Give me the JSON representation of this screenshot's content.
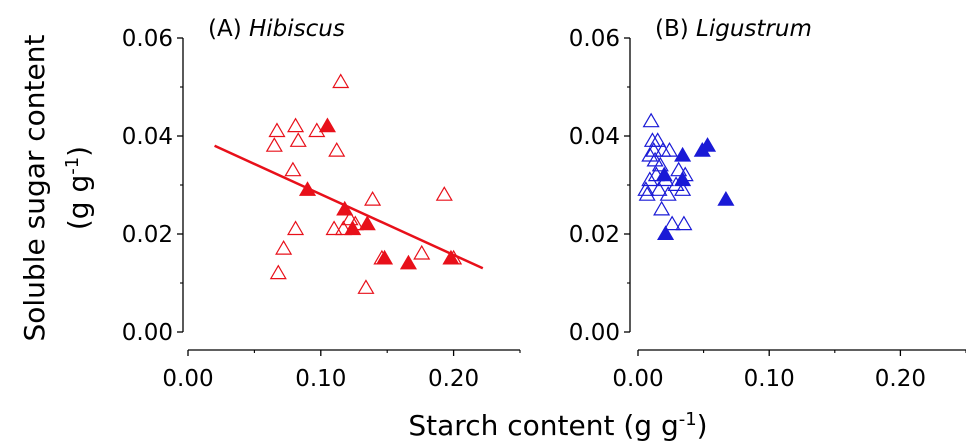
{
  "figure": {
    "ylabel_line1": "Soluble sugar content",
    "ylabel_line2_main": "(g g",
    "ylabel_line2_sup": "-1",
    "ylabel_line2_end": ")",
    "xlabel_main": "Starch content (g g",
    "xlabel_sup": "-1",
    "xlabel_end": ")"
  },
  "colors": {
    "hibiscus": "#e8101a",
    "ligustrum": "#1a1ad6"
  },
  "chart_data": [
    {
      "type": "scatter",
      "panel_label": "(A) ",
      "panel_species": "Hibiscus",
      "xlim": [
        0,
        0.25
      ],
      "ylim": [
        0,
        0.06
      ],
      "x_ticks": [
        "0.00",
        "0.10",
        "0.20"
      ],
      "x_tick_values": [
        0,
        0.1,
        0.2
      ],
      "y_ticks": [
        "0.00",
        "0.02",
        "0.04",
        "0.06"
      ],
      "y_tick_values": [
        0,
        0.02,
        0.04,
        0.06
      ],
      "color": "#e8101a",
      "series": [
        {
          "marker": "open-triangle",
          "points": [
            [
              0.065,
              0.038
            ],
            [
              0.067,
              0.041
            ],
            [
              0.068,
              0.012
            ],
            [
              0.072,
              0.017
            ],
            [
              0.079,
              0.033
            ],
            [
              0.081,
              0.042
            ],
            [
              0.081,
              0.021
            ],
            [
              0.083,
              0.039
            ],
            [
              0.097,
              0.041
            ],
            [
              0.11,
              0.021
            ],
            [
              0.112,
              0.037
            ],
            [
              0.115,
              0.051
            ],
            [
              0.117,
              0.021
            ],
            [
              0.122,
              0.023
            ],
            [
              0.126,
              0.022
            ],
            [
              0.134,
              0.009
            ],
            [
              0.139,
              0.027
            ],
            [
              0.146,
              0.015
            ],
            [
              0.176,
              0.016
            ],
            [
              0.193,
              0.028
            ],
            [
              0.2,
              0.015
            ]
          ]
        },
        {
          "marker": "filled-triangle",
          "points": [
            [
              0.09,
              0.029
            ],
            [
              0.105,
              0.042
            ],
            [
              0.118,
              0.025
            ],
            [
              0.124,
              0.021
            ],
            [
              0.135,
              0.022
            ],
            [
              0.148,
              0.015
            ],
            [
              0.166,
              0.014
            ],
            [
              0.198,
              0.015
            ]
          ]
        }
      ],
      "regression_line": {
        "x": [
          0.02,
          0.222
        ],
        "y": [
          0.038,
          0.013
        ]
      }
    },
    {
      "type": "scatter",
      "panel_label": "(B) ",
      "panel_species": "Ligustrum",
      "xlim": [
        0,
        0.25
      ],
      "ylim": [
        0,
        0.06
      ],
      "x_ticks": [
        "0.00",
        "0.10",
        "0.20"
      ],
      "x_tick_values": [
        0,
        0.1,
        0.2
      ],
      "y_ticks": [
        "0.00",
        "0.02",
        "0.04",
        "0.06"
      ],
      "y_tick_values": [
        0,
        0.02,
        0.04,
        0.06
      ],
      "color": "#1a1ad6",
      "series": [
        {
          "marker": "open-triangle",
          "points": [
            [
              0.006,
              0.029
            ],
            [
              0.007,
              0.028
            ],
            [
              0.009,
              0.031
            ],
            [
              0.009,
              0.036
            ],
            [
              0.01,
              0.043
            ],
            [
              0.011,
              0.039
            ],
            [
              0.012,
              0.037
            ],
            [
              0.013,
              0.035
            ],
            [
              0.014,
              0.032
            ],
            [
              0.015,
              0.039
            ],
            [
              0.016,
              0.029
            ],
            [
              0.017,
              0.034
            ],
            [
              0.018,
              0.025
            ],
            [
              0.019,
              0.037
            ],
            [
              0.021,
              0.031
            ],
            [
              0.023,
              0.028
            ],
            [
              0.024,
              0.037
            ],
            [
              0.026,
              0.022
            ],
            [
              0.029,
              0.03
            ],
            [
              0.031,
              0.033
            ],
            [
              0.034,
              0.029
            ],
            [
              0.035,
              0.022
            ],
            [
              0.036,
              0.032
            ]
          ]
        },
        {
          "marker": "filled-triangle",
          "points": [
            [
              0.02,
              0.032
            ],
            [
              0.021,
              0.02
            ],
            [
              0.034,
              0.036
            ],
            [
              0.034,
              0.031
            ],
            [
              0.049,
              0.037
            ],
            [
              0.053,
              0.038
            ],
            [
              0.067,
              0.027
            ]
          ]
        }
      ]
    }
  ]
}
